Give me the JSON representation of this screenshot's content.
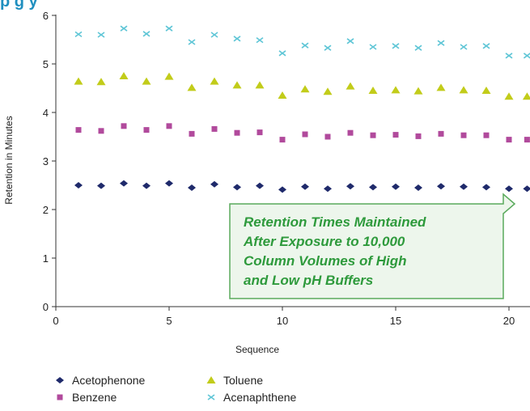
{
  "chart_data": {
    "type": "scatter",
    "title_fragment": "p  g    y",
    "xlabel": "Sequence",
    "ylabel": "Retention in Minutes",
    "xlim": [
      0,
      21
    ],
    "ylim": [
      0,
      6
    ],
    "xticks": [
      "0",
      "5",
      "10",
      "15",
      "20"
    ],
    "yticks": [
      "0",
      "1",
      "2",
      "3",
      "4",
      "5",
      "6"
    ],
    "grid": false,
    "legend_position": "bottom-left",
    "x": [
      1,
      2,
      3,
      4,
      5,
      6,
      7,
      8,
      9,
      10,
      11,
      12,
      13,
      14,
      15,
      16,
      17,
      18,
      19,
      20,
      20.8
    ],
    "series": [
      {
        "name": "Acetophenone",
        "marker": "diamond",
        "color": "#1f2a6b",
        "values": [
          2.5,
          2.49,
          2.54,
          2.49,
          2.54,
          2.45,
          2.52,
          2.46,
          2.49,
          2.41,
          2.47,
          2.43,
          2.48,
          2.46,
          2.47,
          2.45,
          2.48,
          2.47,
          2.46,
          2.43,
          2.43
        ]
      },
      {
        "name": "Benzene",
        "marker": "square",
        "color": "#b14a9c",
        "values": [
          3.64,
          3.62,
          3.72,
          3.64,
          3.72,
          3.56,
          3.66,
          3.58,
          3.59,
          3.44,
          3.55,
          3.5,
          3.58,
          3.53,
          3.54,
          3.51,
          3.56,
          3.53,
          3.53,
          3.44,
          3.44
        ]
      },
      {
        "name": "Toluene",
        "marker": "triangle",
        "color": "#c2cc1a",
        "values": [
          4.64,
          4.63,
          4.75,
          4.64,
          4.74,
          4.51,
          4.64,
          4.56,
          4.56,
          4.35,
          4.48,
          4.43,
          4.54,
          4.45,
          4.46,
          4.44,
          4.51,
          4.46,
          4.45,
          4.33,
          4.33
        ]
      },
      {
        "name": "Acenaphthene",
        "marker": "x",
        "color": "#5fc6d6",
        "values": [
          5.61,
          5.6,
          5.73,
          5.62,
          5.73,
          5.45,
          5.6,
          5.52,
          5.49,
          5.22,
          5.38,
          5.33,
          5.47,
          5.35,
          5.37,
          5.33,
          5.43,
          5.35,
          5.37,
          5.17,
          5.17
        ]
      }
    ],
    "annotation": {
      "lines": [
        "Retention Times Maintained",
        "After Exposure to 10,000",
        "Column Volumes of High",
        "and Low pH Buffers"
      ],
      "text_color": "#2e9a3c",
      "border_color": "#5aaa5c",
      "fill_color": "#edf6ec"
    }
  }
}
